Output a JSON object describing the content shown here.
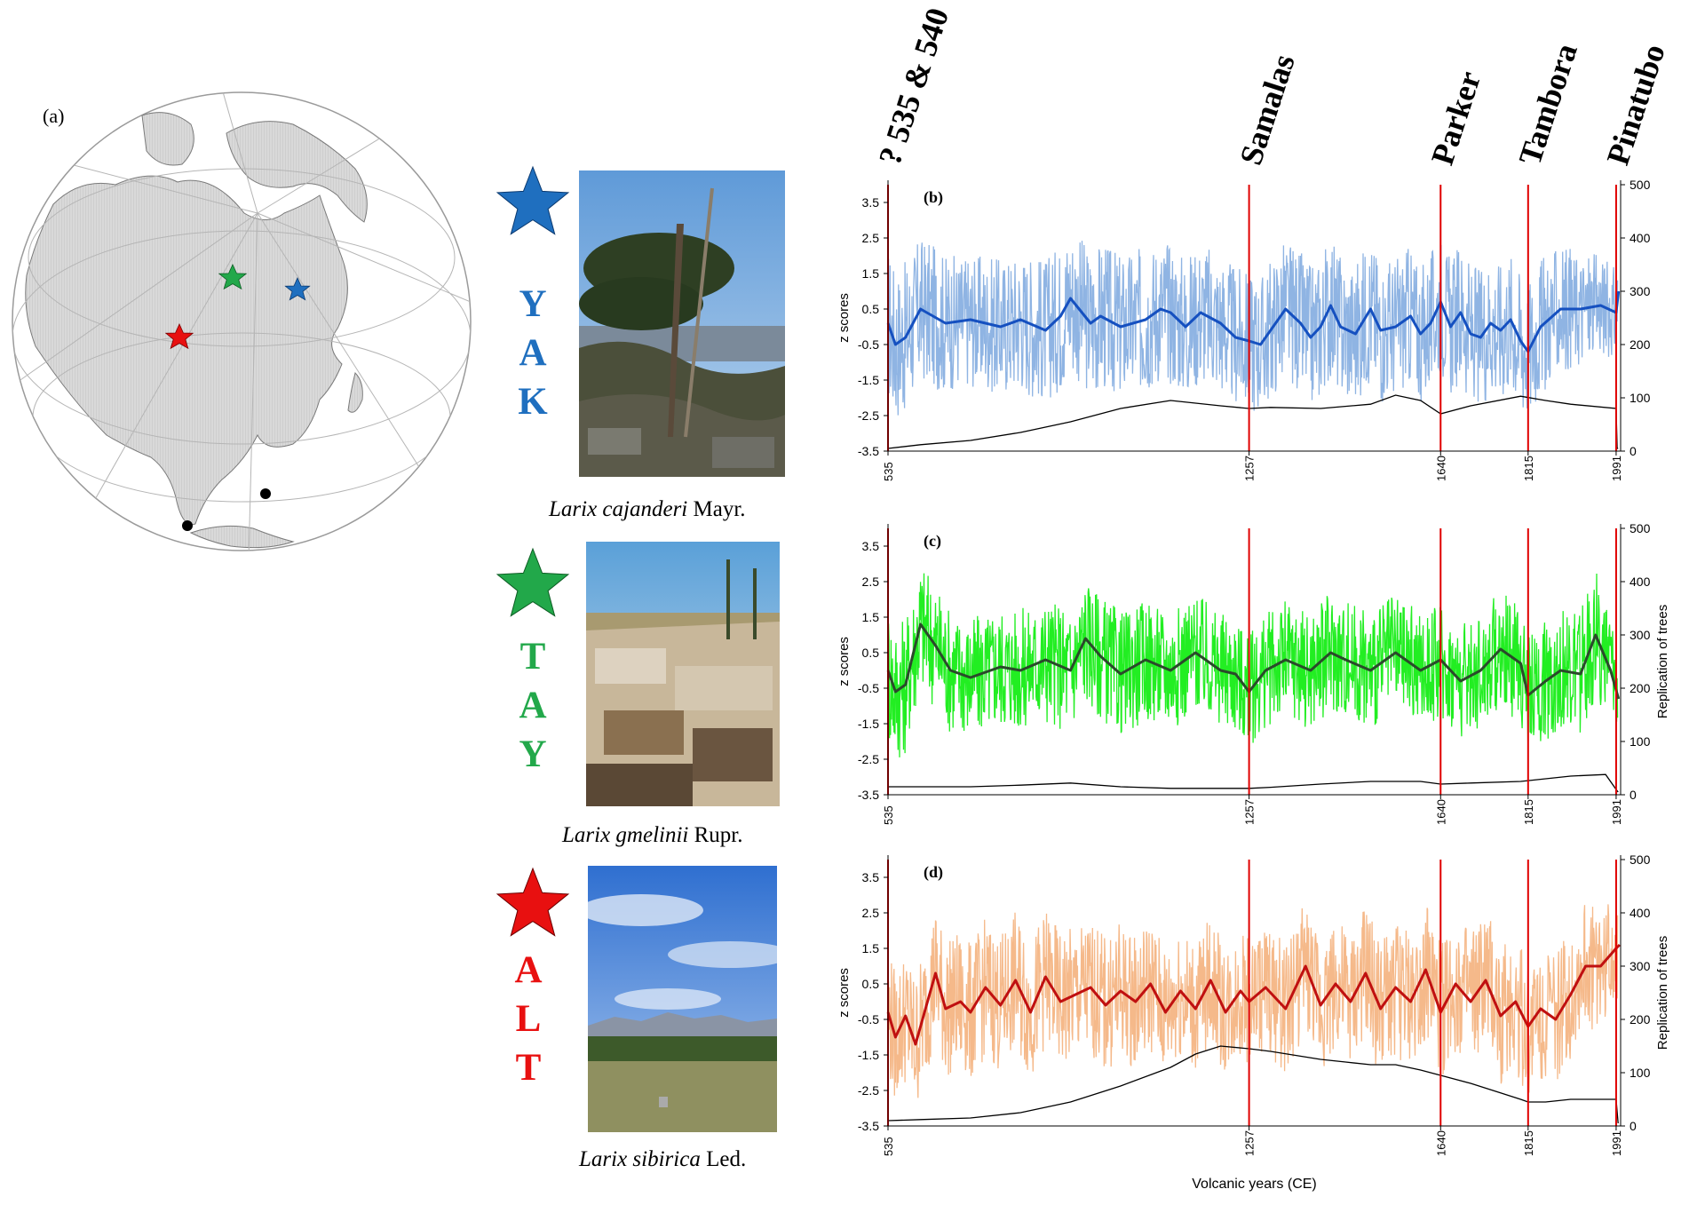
{
  "panel_a": {
    "label": "(a)",
    "colors": {
      "YAK": "#1f6fbf",
      "TAY": "#22a84a",
      "ALT": "#e81010"
    }
  },
  "sites": [
    {
      "code": "YAK",
      "letters": [
        "Y",
        "A",
        "K"
      ],
      "color": "#1f6fbf",
      "species": "Larix cajanderi",
      "author": "Mayr."
    },
    {
      "code": "TAY",
      "letters": [
        "T",
        "A",
        "Y"
      ],
      "color": "#22a84a",
      "species": "Larix gmelinii",
      "author": "Rupr."
    },
    {
      "code": "ALT",
      "letters": [
        "A",
        "L",
        "T"
      ],
      "color": "#e81010",
      "species": "Larix sibirica",
      "author": "Led."
    }
  ],
  "volcanoes": [
    {
      "name": "? 535 & 540",
      "year": 535
    },
    {
      "name": "Samalas",
      "year": 1257
    },
    {
      "name": "Parker",
      "year": 1640
    },
    {
      "name": "Tambora",
      "year": 1815
    },
    {
      "name": "Pinatubo",
      "year": 1991
    }
  ],
  "chart_data": [
    {
      "type": "line",
      "panel": "(b)",
      "ylabel": "z scores",
      "y2label": "",
      "xlabel": "",
      "xlim": [
        535,
        2000
      ],
      "ylim": [
        -3.5,
        4
      ],
      "y2lim": [
        0,
        500
      ],
      "yticks": [
        "3.5",
        "2.5",
        "1.5",
        "0.5",
        "-0.5",
        "-1.5",
        "-2.5",
        "-3.5"
      ],
      "y2ticks": [
        "500",
        "400",
        "300",
        "200",
        "100",
        "0"
      ],
      "xticks": [
        535,
        1257,
        1640,
        1815,
        1991
      ],
      "colors": {
        "annual": "#8fb4e3",
        "smooth": "#1550c0",
        "replication": "#000000",
        "event": "#e00000"
      },
      "smooth": {
        "x": [
          535,
          550,
          570,
          600,
          650,
          700,
          760,
          800,
          850,
          880,
          900,
          940,
          960,
          1000,
          1050,
          1080,
          1100,
          1130,
          1160,
          1200,
          1230,
          1257,
          1280,
          1300,
          1330,
          1360,
          1380,
          1400,
          1420,
          1440,
          1470,
          1500,
          1520,
          1550,
          1580,
          1600,
          1620,
          1640,
          1660,
          1680,
          1700,
          1720,
          1740,
          1760,
          1780,
          1800,
          1815,
          1840,
          1880,
          1920,
          1960,
          1991,
          1996
        ],
        "y": [
          0.1,
          -0.5,
          -0.3,
          0.5,
          0.1,
          0.2,
          0.0,
          0.2,
          -0.1,
          0.3,
          0.8,
          0.1,
          0.3,
          0.0,
          0.2,
          0.5,
          0.4,
          0.0,
          0.4,
          0.1,
          -0.3,
          -0.4,
          -0.5,
          -0.1,
          0.5,
          0.1,
          -0.3,
          0.0,
          0.6,
          0.0,
          -0.2,
          0.5,
          -0.1,
          0.0,
          0.3,
          -0.2,
          0.1,
          0.7,
          0.0,
          0.4,
          -0.2,
          -0.3,
          0.1,
          -0.1,
          0.2,
          -0.4,
          -0.7,
          0.0,
          0.5,
          0.5,
          0.6,
          0.4,
          1.0
        ]
      },
      "annual_envelope": {
        "x": [
          535,
          700,
          900,
          1100,
          1257,
          1400,
          1500,
          1640,
          1815,
          1900,
          1991
        ],
        "amp": [
          2.6,
          2.2,
          2.5,
          2.4,
          2.3,
          2.4,
          2.4,
          2.3,
          2.4,
          2.0,
          1.5
        ]
      },
      "replication": {
        "x": [
          535,
          600,
          700,
          800,
          900,
          1000,
          1100,
          1200,
          1257,
          1300,
          1400,
          1500,
          1550,
          1600,
          1640,
          1700,
          1800,
          1850,
          1900,
          1991,
          1993,
          1995
        ],
        "y": [
          5,
          12,
          20,
          35,
          55,
          80,
          95,
          85,
          80,
          82,
          80,
          88,
          105,
          95,
          70,
          85,
          103,
          95,
          88,
          80,
          5,
          5
        ]
      }
    },
    {
      "type": "line",
      "panel": "(c)",
      "ylabel": "z scores",
      "y2label": "Replication of trees",
      "xlabel": "",
      "xlim": [
        535,
        2000
      ],
      "ylim": [
        -3.5,
        4
      ],
      "y2lim": [
        0,
        500
      ],
      "yticks": [
        "3.5",
        "2.5",
        "1.5",
        "0.5",
        "-0.5",
        "-1.5",
        "-2.5",
        "-3.5"
      ],
      "y2ticks": [
        "500",
        "400",
        "300",
        "200",
        "100",
        "0"
      ],
      "xticks": [
        535,
        1257,
        1640,
        1815,
        1991
      ],
      "colors": {
        "annual": "#22ee22",
        "smooth": "#2a4a2a",
        "replication": "#000000",
        "event": "#e00000"
      },
      "smooth": {
        "x": [
          535,
          550,
          570,
          600,
          630,
          660,
          700,
          760,
          800,
          850,
          900,
          930,
          960,
          1000,
          1050,
          1100,
          1150,
          1200,
          1230,
          1257,
          1290,
          1330,
          1380,
          1420,
          1450,
          1500,
          1550,
          1600,
          1640,
          1680,
          1720,
          1760,
          1800,
          1815,
          1850,
          1880,
          1920,
          1950,
          1980,
          1996
        ],
        "y": [
          0.0,
          -0.6,
          -0.4,
          1.3,
          0.7,
          0.0,
          -0.2,
          0.1,
          0.0,
          0.3,
          0.0,
          0.9,
          0.4,
          -0.1,
          0.3,
          0.0,
          0.5,
          0.0,
          -0.1,
          -0.6,
          0.0,
          0.3,
          0.0,
          0.5,
          0.3,
          0.0,
          0.5,
          0.0,
          0.3,
          -0.3,
          0.0,
          0.6,
          0.2,
          -0.7,
          -0.3,
          0.0,
          -0.1,
          1.0,
          0.0,
          -0.8
        ]
      },
      "annual_envelope": {
        "x": [
          535,
          600,
          700,
          900,
          1100,
          1257,
          1400,
          1640,
          1815,
          1950,
          1991
        ],
        "amp": [
          2.4,
          2.2,
          2.0,
          2.1,
          2.0,
          1.9,
          2.0,
          1.9,
          2.0,
          2.2,
          1.5
        ]
      },
      "replication": {
        "x": [
          535,
          600,
          700,
          800,
          900,
          1000,
          1100,
          1200,
          1257,
          1300,
          1400,
          1500,
          1600,
          1640,
          1700,
          1800,
          1900,
          1970,
          1991,
          1995
        ],
        "y": [
          15,
          15,
          15,
          18,
          22,
          15,
          12,
          12,
          12,
          14,
          20,
          25,
          25,
          20,
          22,
          25,
          35,
          38,
          10,
          5
        ]
      }
    },
    {
      "type": "line",
      "panel": "(d)",
      "ylabel": "z scores",
      "y2label": "Replication of trees",
      "xlabel": "Volcanic years (CE)",
      "xlim": [
        535,
        2000
      ],
      "ylim": [
        -3.5,
        4
      ],
      "y2lim": [
        0,
        500
      ],
      "yticks": [
        "3.5",
        "2.5",
        "1.5",
        "0.5",
        "-0.5",
        "-1.5",
        "-2.5",
        "-3.5"
      ],
      "y2ticks": [
        "500",
        "400",
        "300",
        "200",
        "100",
        "0"
      ],
      "xticks": [
        535,
        1257,
        1640,
        1815,
        1991
      ],
      "colors": {
        "annual": "#f5b98a",
        "smooth": "#c01010",
        "replication": "#000000",
        "event": "#e00000"
      },
      "smooth": {
        "x": [
          535,
          550,
          570,
          590,
          610,
          630,
          650,
          680,
          700,
          730,
          760,
          790,
          820,
          850,
          880,
          910,
          940,
          970,
          1000,
          1030,
          1060,
          1090,
          1120,
          1150,
          1180,
          1210,
          1240,
          1257,
          1290,
          1330,
          1370,
          1400,
          1430,
          1460,
          1490,
          1520,
          1550,
          1580,
          1610,
          1640,
          1670,
          1700,
          1730,
          1760,
          1790,
          1815,
          1840,
          1870,
          1900,
          1930,
          1960,
          1991,
          1998
        ],
        "y": [
          -0.3,
          -1.0,
          -0.4,
          -1.2,
          -0.2,
          0.8,
          -0.2,
          0.0,
          -0.3,
          0.4,
          -0.1,
          0.6,
          -0.3,
          0.7,
          0.0,
          0.2,
          0.4,
          -0.1,
          0.3,
          0.0,
          0.5,
          -0.3,
          0.3,
          -0.2,
          0.6,
          -0.3,
          0.3,
          0.0,
          0.4,
          -0.2,
          1.0,
          -0.1,
          0.5,
          0.0,
          0.8,
          -0.2,
          0.4,
          0.0,
          0.9,
          -0.3,
          0.5,
          0.0,
          0.6,
          -0.4,
          0.0,
          -0.7,
          -0.2,
          -0.5,
          0.2,
          1.0,
          1.0,
          1.5,
          1.6
        ]
      },
      "annual_envelope": {
        "x": [
          535,
          600,
          700,
          900,
          1100,
          1257,
          1400,
          1640,
          1815,
          1950,
          1991
        ],
        "amp": [
          2.2,
          2.3,
          2.3,
          2.3,
          2.2,
          2.1,
          2.2,
          2.3,
          2.4,
          2.1,
          1.8
        ]
      },
      "replication": {
        "x": [
          535,
          600,
          700,
          800,
          900,
          1000,
          1100,
          1150,
          1200,
          1257,
          1300,
          1400,
          1450,
          1500,
          1550,
          1600,
          1640,
          1700,
          1760,
          1800,
          1815,
          1850,
          1900,
          1991,
          1995
        ],
        "y": [
          10,
          12,
          15,
          25,
          45,
          75,
          110,
          135,
          150,
          145,
          140,
          125,
          120,
          115,
          115,
          105,
          95,
          80,
          62,
          50,
          45,
          45,
          50,
          50,
          5
        ]
      }
    }
  ]
}
